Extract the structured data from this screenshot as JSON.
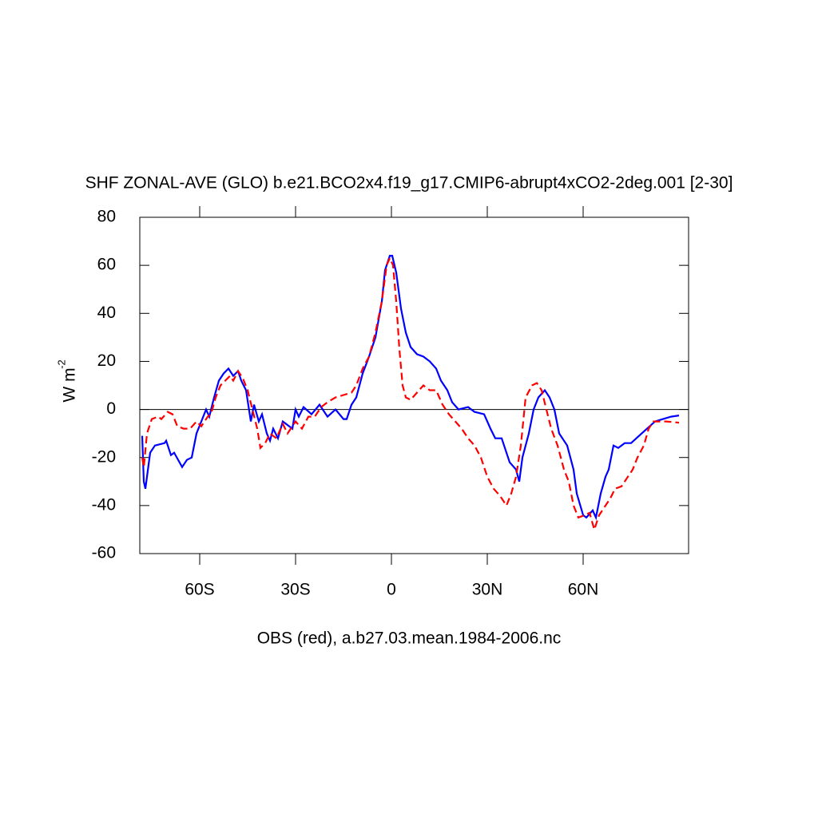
{
  "chart_data": {
    "type": "line",
    "title": "SHF ZONAL-AVE (GLO) b.e21.BCO2x4.f19_g17.CMIP6-abrupt4xCO2-2deg.001 [2-30]",
    "ylabel": "W m",
    "ylabel_superscript": "-2",
    "xlabel": "OBS (red), a.b27.03.mean.1984-2006.nc",
    "xlim": [
      -78.75,
      93
    ],
    "ylim": [
      -60,
      80
    ],
    "xticks": [
      {
        "value": -60,
        "label": "60S"
      },
      {
        "value": -30,
        "label": "30S"
      },
      0,
      {
        "value": 30,
        "label": "30N"
      },
      {
        "value": 60,
        "label": "60N"
      }
    ],
    "yticks": [
      -60,
      -40,
      -20,
      0,
      20,
      40,
      60,
      80
    ],
    "reference_line": 0,
    "series": [
      {
        "color": "#0000ff",
        "dash": "solid",
        "x": [
          -78,
          -77.5,
          -77,
          -75.5,
          -74,
          -71,
          -70.5,
          -69,
          -68,
          -65.5,
          -64,
          -62.5,
          -61,
          -59.5,
          -58,
          -57,
          -55.5,
          -54,
          -52.5,
          -51,
          -49.5,
          -48,
          -47,
          -45.5,
          -44,
          -43,
          -41.5,
          -40.5,
          -39,
          -38,
          -37,
          -35.5,
          -34,
          -31,
          -30,
          -29,
          -27.5,
          -25,
          -22.5,
          -20,
          -17.5,
          -15,
          -14,
          -12.5,
          -11,
          -9,
          -7,
          -5,
          -3,
          -2,
          -0.5,
          0.25,
          1.5,
          3,
          4.5,
          6,
          8,
          10,
          12,
          14,
          15.5,
          17.5,
          19,
          21,
          24,
          26,
          29,
          31,
          32.5,
          34.5,
          37,
          39,
          40,
          41,
          43,
          44.5,
          46,
          48,
          49.5,
          51,
          52.5,
          55,
          57,
          58,
          60,
          61,
          63,
          64,
          65.5,
          67,
          68,
          69.5,
          71,
          73,
          75,
          77.5,
          80,
          82.5,
          85,
          87.5,
          90
        ],
        "values": [
          -11,
          -30,
          -33,
          -18,
          -15,
          -14,
          -13,
          -19,
          -18,
          -24,
          -21,
          -20,
          -10,
          -5,
          0,
          -3,
          5,
          12,
          15,
          17,
          14,
          16,
          12,
          8,
          -5,
          2,
          -5,
          -2,
          -10,
          -13,
          -8,
          -12,
          -5,
          -8,
          0,
          -3,
          1,
          -2,
          2,
          -3,
          0,
          -4,
          -4,
          2,
          5,
          15,
          22,
          30,
          45,
          58,
          64,
          64,
          57,
          42,
          32,
          26,
          23,
          22,
          20,
          17,
          12,
          8,
          3,
          0,
          1,
          -1,
          -2,
          -8,
          -12,
          -12,
          -22,
          -25,
          -30,
          -20,
          -10,
          0,
          5,
          8,
          5,
          0,
          -10,
          -15,
          -25,
          -35,
          -44,
          -45,
          -42,
          -45,
          -35,
          -28,
          -25,
          -15,
          -16,
          -14,
          -14,
          -11,
          -8,
          -5,
          -4,
          -3,
          -2.5
        ]
      },
      {
        "color": "#ff0000",
        "dash": "dashed",
        "x": [
          -78,
          -77.5,
          -76.5,
          -75,
          -73,
          -72,
          -70,
          -68.5,
          -67,
          -65,
          -63,
          -61,
          -59.5,
          -57.5,
          -56.5,
          -55,
          -53.5,
          -52,
          -50.5,
          -49.5,
          -48,
          -46.5,
          -45,
          -43.5,
          -42,
          -41,
          -39.5,
          -38,
          -36,
          -34,
          -32.5,
          -30,
          -28,
          -26,
          -24,
          -22,
          -20,
          -17.5,
          -15,
          -12.5,
          -11,
          -9,
          -7,
          -5,
          -3,
          -1.5,
          -0.5,
          0.5,
          1.5,
          2.5,
          3.5,
          4.5,
          6,
          8,
          10,
          12,
          14,
          16,
          18,
          20,
          22,
          24,
          26,
          28,
          30,
          32,
          34,
          36,
          37.5,
          39,
          40.5,
          42,
          44,
          45.5,
          47,
          48.5,
          50,
          52,
          54,
          55.5,
          57,
          58.5,
          60.5,
          62,
          63.5,
          65,
          67,
          68.5,
          70,
          72,
          74,
          75.5,
          77,
          79,
          80.5,
          82,
          86,
          90
        ],
        "values": [
          -20,
          -24,
          -10,
          -4,
          -3,
          -4,
          -1,
          -2,
          -7,
          -8,
          -8,
          -5,
          -7,
          -3,
          -2,
          5,
          10,
          12,
          14,
          12,
          16,
          13,
          8,
          0,
          -8,
          -16,
          -14,
          -10,
          -12,
          -6,
          -10,
          -5,
          -8,
          -3,
          -3,
          1,
          3,
          5,
          6,
          7,
          10,
          17,
          22,
          32,
          45,
          60,
          63,
          60,
          45,
          25,
          10,
          5,
          4,
          7,
          10,
          8,
          8,
          2,
          -2,
          -5,
          -8,
          -12,
          -15,
          -20,
          -28,
          -33,
          -36,
          -40,
          -35,
          -28,
          -15,
          5,
          10,
          11,
          8,
          0,
          -8,
          -15,
          -25,
          -30,
          -40,
          -45,
          -44,
          -43,
          -50,
          -44,
          -40,
          -37,
          -33,
          -32,
          -28,
          -25,
          -20,
          -15,
          -8,
          -5,
          -5,
          -5.5
        ]
      }
    ]
  }
}
